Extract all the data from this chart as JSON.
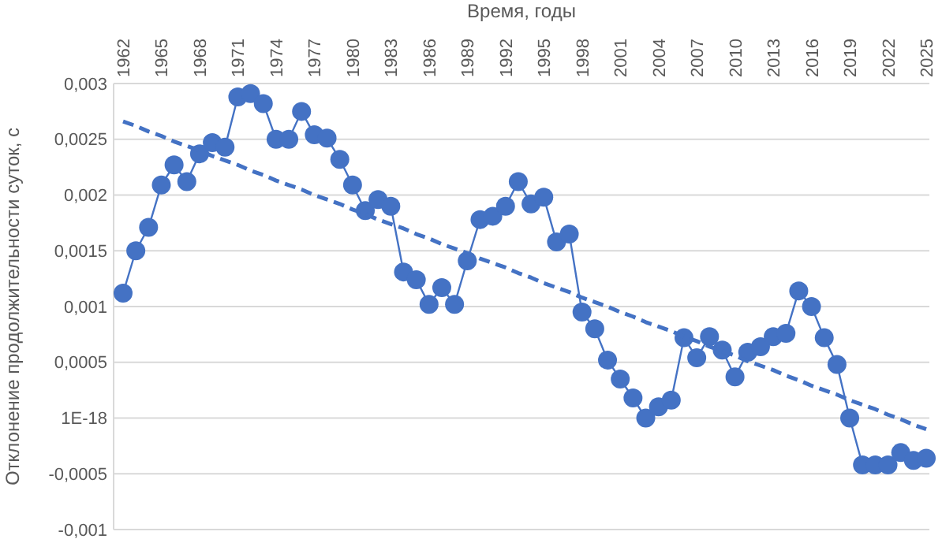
{
  "chart_data": {
    "type": "line",
    "xlabel": "Время, годы",
    "ylabel": "Отклонение продолжительности суток, с",
    "categories": [
      "1962",
      null,
      null,
      "1965",
      null,
      null,
      "1968",
      null,
      null,
      "1971",
      null,
      null,
      "1974",
      null,
      null,
      "1977",
      null,
      null,
      "1980",
      null,
      null,
      "1983",
      null,
      null,
      "1986",
      null,
      null,
      "1989",
      null,
      null,
      "1992",
      null,
      null,
      "1995",
      null,
      null,
      "1998",
      null,
      null,
      "2001",
      null,
      null,
      "2004",
      null,
      null,
      "2007",
      null,
      null,
      "2010",
      null,
      null,
      "2013",
      null,
      null,
      "2016",
      null,
      null,
      "2019",
      null,
      null,
      "2022",
      null,
      null,
      "2025"
    ],
    "series": [
      {
        "color": "#4472c4",
        "marker": "circle",
        "line_style": "solid",
        "values": [
          0.00112,
          0.0015,
          0.00171,
          0.00209,
          0.00227,
          0.00212,
          0.00237,
          0.00247,
          0.00243,
          0.00288,
          0.00291,
          0.00282,
          0.0025,
          0.0025,
          0.00275,
          0.00254,
          0.00251,
          0.00232,
          0.00209,
          0.00186,
          0.00196,
          0.0019,
          0.00131,
          0.00124,
          0.00102,
          0.00117,
          0.00102,
          0.00141,
          0.00178,
          0.00181,
          0.0019,
          0.00212,
          0.00192,
          0.00198,
          0.00158,
          0.00165,
          0.00095,
          0.0008,
          0.00052,
          0.00035,
          0.00018,
          0,
          0.0001,
          0.00016,
          0.00072,
          0.00054,
          0.00073,
          0.00061,
          0.00037,
          0.00059,
          0.00064,
          0.00073,
          0.00076,
          0.00114,
          0.001,
          0.00072,
          0.00048,
          0,
          -0.00042,
          -0.00042,
          -0.00042,
          -0.00031,
          -0.00038,
          -0.00036
        ]
      },
      {
        "color": "#4472c4",
        "marker": "none",
        "line_style": "dashed",
        "values": [
          0.00266,
          0.00262,
          0.00257,
          0.00253,
          0.00248,
          0.00244,
          0.0024,
          0.00235,
          0.00231,
          0.00227,
          0.00222,
          0.00218,
          0.00213,
          0.00209,
          0.00205,
          0.002,
          0.00196,
          0.00192,
          0.00187,
          0.00183,
          0.00178,
          0.00174,
          0.0017,
          0.00165,
          0.00161,
          0.00156,
          0.00152,
          0.00148,
          0.00143,
          0.00139,
          0.00135,
          0.0013,
          0.00126,
          0.00121,
          0.00117,
          0.00113,
          0.00108,
          0.00104,
          0.001,
          0.00095,
          0.00091,
          0.00086,
          0.00082,
          0.00078,
          0.00073,
          0.00069,
          0.00064,
          0.0006,
          0.00056,
          0.00051,
          0.00047,
          0.00043,
          0.00038,
          0.00034,
          0.00029,
          0.00025,
          0.00021,
          0.00016,
          0.00012,
          8e-05,
          3e-05,
          -1e-05,
          -6e-05,
          -0.0001
        ]
      }
    ],
    "ylim": [
      -0.001,
      0.003
    ],
    "yticks": [
      {
        "value": 0.003,
        "label": "0,003"
      },
      {
        "value": 0.0025,
        "label": "0,0025"
      },
      {
        "value": 0.002,
        "label": "0,002"
      },
      {
        "value": 0.0015,
        "label": "0,0015"
      },
      {
        "value": 0.001,
        "label": "0,001"
      },
      {
        "value": 0.0005,
        "label": "0,0005"
      },
      {
        "value": 0,
        "label": "1E-18"
      },
      {
        "value": -0.0005,
        "label": "-0,0005"
      },
      {
        "value": -0.001,
        "label": "-0,001"
      }
    ],
    "grid": "y"
  }
}
